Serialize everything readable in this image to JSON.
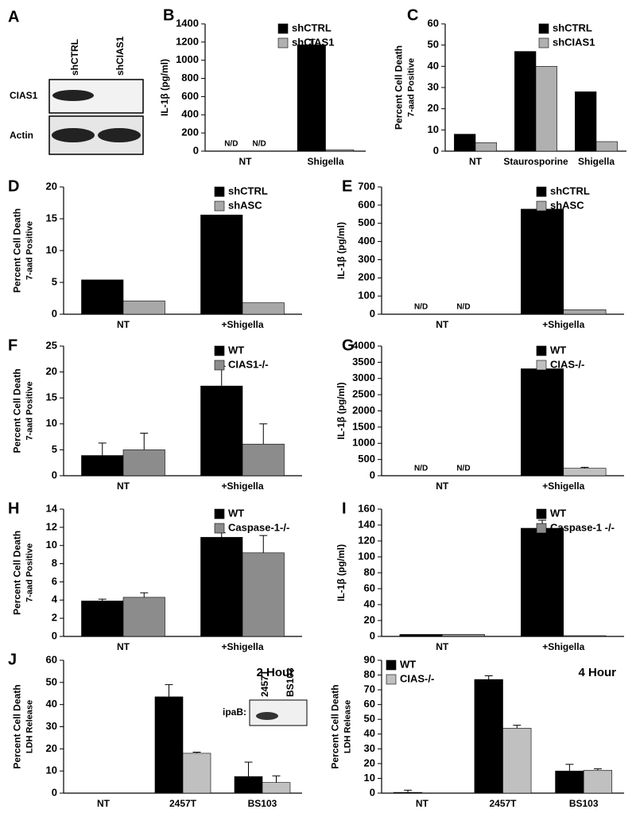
{
  "blot_a": {
    "label": "A",
    "lanes": [
      "shCTRL",
      "shCIAS1"
    ],
    "rows": [
      "CIAS1",
      "Actin"
    ]
  },
  "chart_data": [
    {
      "type": "bar",
      "label": "B",
      "ylabel": [
        "IL-1β (pg/ml)"
      ],
      "categories": [
        "NT",
        "Shigella"
      ],
      "legend": "upper right",
      "series": [
        {
          "name": "shCTRL",
          "color": "#000000",
          "values": [
            null,
            1170
          ],
          "value_labels": [
            "N/D",
            null
          ],
          "errors": [
            null,
            60
          ]
        },
        {
          "name": "shCIAS1",
          "color": "#b0b0b0",
          "values": [
            null,
            15
          ],
          "value_labels": [
            "N/D",
            null
          ],
          "errors": [
            null,
            null
          ]
        }
      ],
      "ylim": [
        0,
        1400
      ],
      "yticks": [
        0,
        200,
        400,
        600,
        800,
        1000,
        1200,
        1400
      ]
    },
    {
      "type": "bar",
      "label": "C",
      "ylabel": [
        "Percent Cell Death",
        "7-aad Positive"
      ],
      "categories": [
        "NT",
        "Staurosporine",
        "Shigella"
      ],
      "legend": "upper right",
      "series": [
        {
          "name": "shCTRL",
          "color": "#000000",
          "values": [
            8,
            47,
            28
          ]
        },
        {
          "name": "shCIAS1",
          "color": "#b0b0b0",
          "values": [
            4,
            40,
            4.5
          ]
        }
      ],
      "ylim": [
        0,
        60
      ],
      "yticks": [
        0,
        10,
        20,
        30,
        40,
        50,
        60
      ]
    },
    {
      "type": "bar",
      "label": "D",
      "ylabel": [
        "Percent Cell Death",
        "7-aad Positive"
      ],
      "categories": [
        "NT",
        "+Shigella"
      ],
      "legend": "upper right",
      "series": [
        {
          "name": "shCTRL",
          "color": "#000000",
          "values": [
            5.4,
            15.6
          ]
        },
        {
          "name": "shASC",
          "color": "#a8a8a8",
          "values": [
            2.1,
            1.8
          ]
        }
      ],
      "ylim": [
        0,
        20
      ],
      "yticks": [
        0,
        5,
        10,
        15,
        20
      ]
    },
    {
      "type": "bar",
      "label": "E",
      "ylabel": [
        "IL-1β (pg/ml)"
      ],
      "categories": [
        "NT",
        "+Shigella"
      ],
      "legend": "upper right",
      "series": [
        {
          "name": "shCTRL",
          "color": "#000000",
          "values": [
            null,
            578
          ],
          "value_labels": [
            "N/D",
            null
          ],
          "errors": [
            null,
            15
          ]
        },
        {
          "name": "shASC",
          "color": "#a8a8a8",
          "values": [
            null,
            25
          ],
          "value_labels": [
            "N/D",
            null
          ],
          "errors": [
            null,
            null
          ]
        }
      ],
      "ylim": [
        0,
        700
      ],
      "yticks": [
        0,
        100,
        200,
        300,
        400,
        500,
        600,
        700
      ]
    },
    {
      "type": "bar",
      "label": "F",
      "ylabel": [
        "Percent Cell Death",
        "7-aad Positive"
      ],
      "categories": [
        "NT",
        "+Shigella"
      ],
      "legend": "upper right",
      "series": [
        {
          "name": "WT",
          "color": "#000000",
          "values": [
            3.9,
            17.3
          ],
          "errors": [
            2.4,
            3.8
          ]
        },
        {
          "name": "CIAS1-/-",
          "color": "#8c8c8c",
          "values": [
            5.0,
            6.1
          ],
          "errors": [
            3.2,
            3.9
          ]
        }
      ],
      "ylim": [
        0,
        25
      ],
      "yticks": [
        0,
        5,
        10,
        15,
        20,
        25
      ]
    },
    {
      "type": "bar",
      "label": "G",
      "ylabel": [
        "IL-1β (pg/ml)"
      ],
      "categories": [
        "NT",
        "+Shigella"
      ],
      "legend": "upper right",
      "series": [
        {
          "name": "WT",
          "color": "#000000",
          "values": [
            null,
            3300
          ],
          "value_labels": [
            "N/D",
            null
          ],
          "errors": [
            null,
            60
          ]
        },
        {
          "name": "CIAS-/-",
          "color": "#c0c0c0",
          "values": [
            null,
            230
          ],
          "value_labels": [
            "N/D",
            null
          ],
          "errors": [
            null,
            30
          ]
        }
      ],
      "ylim": [
        0,
        4000
      ],
      "yticks": [
        0,
        500,
        1000,
        1500,
        2000,
        2500,
        3000,
        3500,
        4000
      ]
    },
    {
      "type": "bar",
      "label": "H",
      "ylabel": [
        "Percent Cell Death",
        "7-aad Positive"
      ],
      "categories": [
        "NT",
        "+Shigella"
      ],
      "legend": "upper right",
      "series": [
        {
          "name": "WT",
          "color": "#000000",
          "values": [
            3.9,
            10.9
          ],
          "errors": [
            0.2,
            0.5
          ]
        },
        {
          "name": "Caspase-1-/-",
          "color": "#8c8c8c",
          "values": [
            4.3,
            9.2
          ],
          "errors": [
            0.5,
            1.9
          ]
        }
      ],
      "ylim": [
        0,
        14
      ],
      "yticks": [
        0,
        2,
        4,
        6,
        8,
        10,
        12,
        14
      ]
    },
    {
      "type": "bar",
      "label": "I",
      "ylabel": [
        "IL-1β (pg/ml)"
      ],
      "categories": [
        "NT",
        "+Shigella"
      ],
      "legend": "upper right",
      "series": [
        {
          "name": "WT",
          "color": "#000000",
          "values": [
            2.5,
            136
          ],
          "errors": [
            null,
            10
          ]
        },
        {
          "name": "Caspase-1 -/-",
          "color": "#8c8c8c",
          "values": [
            2.5,
            1
          ],
          "errors": [
            null,
            null
          ]
        }
      ],
      "ylim": [
        0,
        160
      ],
      "yticks": [
        0,
        20,
        40,
        60,
        80,
        100,
        120,
        140,
        160
      ]
    },
    {
      "type": "bar",
      "label": "J",
      "annotation": "2 Hour",
      "ylabel": [
        "Percent Cell Death",
        "LDH Release"
      ],
      "categories": [
        "NT",
        "2457T",
        "BS103"
      ],
      "inset": {
        "label": "ipaB:",
        "lanes": [
          "2457T",
          "BS103"
        ]
      },
      "series": [
        {
          "name": "WT",
          "color": "#000000",
          "values": [
            null,
            43.5,
            7.5
          ],
          "errors": [
            null,
            5.5,
            6.5
          ]
        },
        {
          "name": "CIAS-/-",
          "color": "#c0c0c0",
          "values": [
            null,
            18,
            4.8
          ],
          "errors": [
            null,
            0.5,
            3
          ]
        }
      ],
      "ylim": [
        0,
        60
      ],
      "yticks": [
        0,
        10,
        20,
        30,
        40,
        50,
        60
      ]
    },
    {
      "type": "bar",
      "annotation": "4 Hour",
      "ylabel": [
        "Percent Cell Death",
        "LDH Release"
      ],
      "categories": [
        "NT",
        "2457T",
        "BS103"
      ],
      "legend": "upper left",
      "series": [
        {
          "name": "WT",
          "color": "#000000",
          "values": [
            0.5,
            77,
            15
          ],
          "errors": [
            1.5,
            2.5,
            4.5
          ]
        },
        {
          "name": "CIAS-/-",
          "color": "#c0c0c0",
          "values": [
            null,
            44,
            15.5
          ],
          "errors": [
            null,
            2,
            1
          ]
        }
      ],
      "ylim": [
        0,
        90
      ],
      "yticks": [
        0,
        10,
        20,
        30,
        40,
        50,
        60,
        70,
        80,
        90
      ]
    }
  ]
}
